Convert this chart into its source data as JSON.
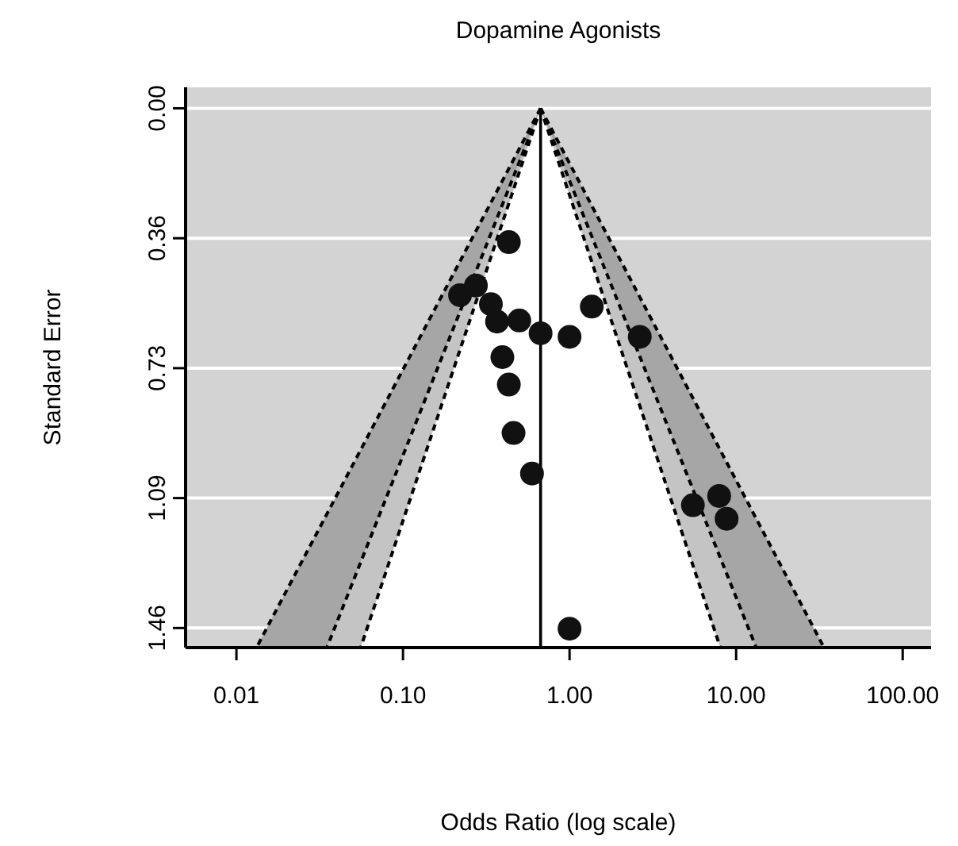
{
  "chart_data": {
    "type": "scatter",
    "title": "Dopamine Agonists",
    "xlabel": "Odds Ratio (log scale)",
    "ylabel": "Standard Error",
    "log": "x",
    "grid": "y",
    "line_style": "dashed",
    "xlim": [
      0.00495,
      148
    ],
    "ylim": [
      1.515,
      -0.059
    ],
    "xticks": [
      {
        "value": 0.01,
        "label": "0.01"
      },
      {
        "value": 0.1,
        "label": "0.10"
      },
      {
        "value": 1,
        "label": "1.00"
      },
      {
        "value": 10,
        "label": "10.00"
      },
      {
        "value": 100,
        "label": "100.00"
      }
    ],
    "yticks": [
      {
        "value": 0,
        "label": "0.00"
      },
      {
        "value": 0.365,
        "label": "0.36"
      },
      {
        "value": 0.73,
        "label": "0.73"
      },
      {
        "value": 1.095,
        "label": "1.09"
      },
      {
        "value": 1.46,
        "label": "1.46"
      }
    ],
    "ref_lines": [
      {
        "axis": "x",
        "value": 0.67,
        "color": "#000000",
        "line_style": "solid"
      }
    ],
    "series": [
      {
        "type": "line",
        "marker": "none",
        "color": "#000000",
        "x": [
          0.67,
          0.0132
        ],
        "values": [
          0,
          1.515
        ]
      },
      {
        "type": "line",
        "marker": "none",
        "color": "#000000",
        "x": [
          0.67,
          0.0349
        ],
        "values": [
          0,
          1.515
        ]
      },
      {
        "type": "line",
        "marker": "none",
        "color": "#000000",
        "x": [
          0.67,
          0.0557
        ],
        "values": [
          0,
          1.515
        ]
      },
      {
        "type": "line",
        "marker": "none",
        "color": "#000000",
        "x": [
          0.67,
          8.04
        ],
        "values": [
          0,
          1.515
        ]
      },
      {
        "type": "line",
        "marker": "none",
        "color": "#000000",
        "x": [
          0.67,
          13.2
        ],
        "values": [
          0,
          1.515
        ]
      },
      {
        "type": "line",
        "marker": "none",
        "color": "#000000",
        "x": [
          0.67,
          33.7
        ],
        "values": [
          0,
          1.515
        ]
      },
      {
        "type": "scatter",
        "marker": "circle",
        "color": "#111111",
        "x": [
          0.432,
          0.22,
          0.274,
          0.337,
          0.367,
          0.499,
          0.67,
          0.395,
          0.432,
          0.461,
          0.595,
          1.0,
          1.0,
          1.36,
          2.64,
          5.5,
          7.91,
          8.77
        ],
        "values": [
          0.376,
          0.525,
          0.498,
          0.55,
          0.599,
          0.596,
          0.632,
          0.699,
          0.776,
          0.912,
          1.026,
          1.462,
          0.642,
          0.557,
          0.642,
          1.115,
          1.089,
          1.153
        ]
      }
    ]
  }
}
